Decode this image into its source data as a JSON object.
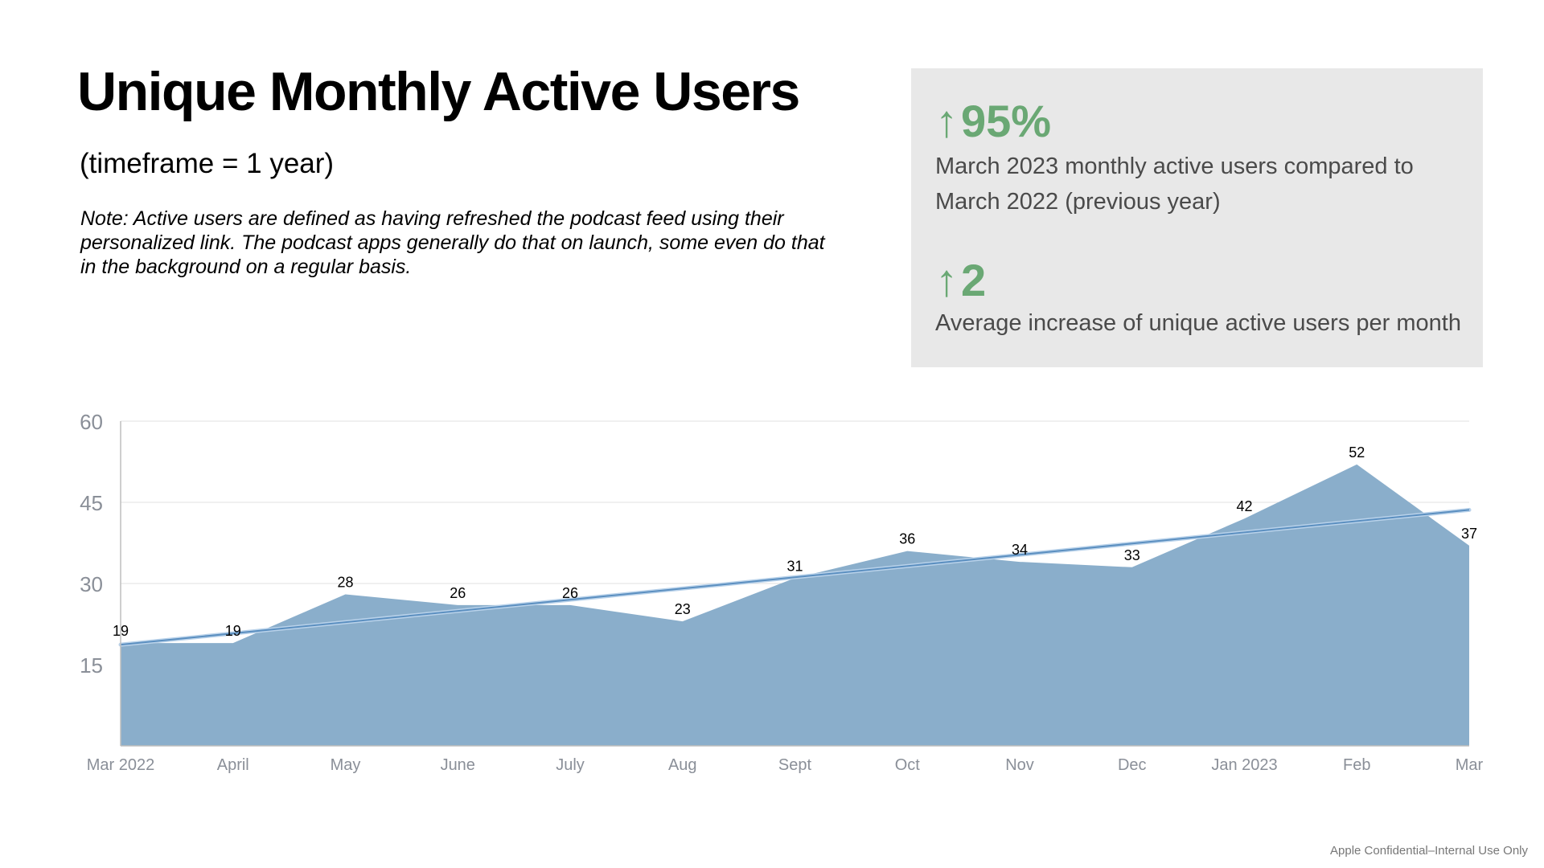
{
  "title": "Unique Monthly Active Users",
  "timeframe": "(timeframe = 1 year)",
  "note": "Note: Active users are defined as having refreshed the podcast feed using their personalized link. The podcast apps generally do that on launch, some even do that in the background on a regular basis.",
  "stats": [
    {
      "arrow": "↑",
      "value": "95%",
      "description": "March 2023 monthly active users compared to March 2022 (previous year)"
    },
    {
      "arrow": "↑",
      "value": "2",
      "description": "Average increase of unique active users per month"
    }
  ],
  "colors": {
    "accent_green": "#6aa874",
    "area_fill": "#8aaecb",
    "trend_line": "#5b8fc0",
    "panel_bg": "#e8e8e8"
  },
  "footer": "Apple Confidential–Internal Use Only",
  "chart_data": {
    "type": "area",
    "categories": [
      "Mar 2022",
      "April",
      "May",
      "June",
      "July",
      "Aug",
      "Sept",
      "Oct",
      "Nov",
      "Dec",
      "Jan 2023",
      "Feb",
      "Mar"
    ],
    "values": [
      19,
      19,
      28,
      26,
      26,
      23,
      31,
      36,
      34,
      33,
      42,
      52,
      37
    ],
    "data_labels": [
      "19",
      "19",
      "28",
      "26",
      "26",
      "23",
      "31",
      "36",
      "34",
      "33",
      "42",
      "52",
      "37"
    ],
    "ylim": [
      0,
      60
    ],
    "yticks": [
      15,
      30,
      45,
      60
    ],
    "ytick_labels": [
      "15",
      "30",
      "45",
      "60"
    ],
    "trendline": {
      "start": 18.7,
      "end": 43.6
    },
    "grid": true,
    "legend": "none",
    "xlabel": "",
    "ylabel": ""
  }
}
